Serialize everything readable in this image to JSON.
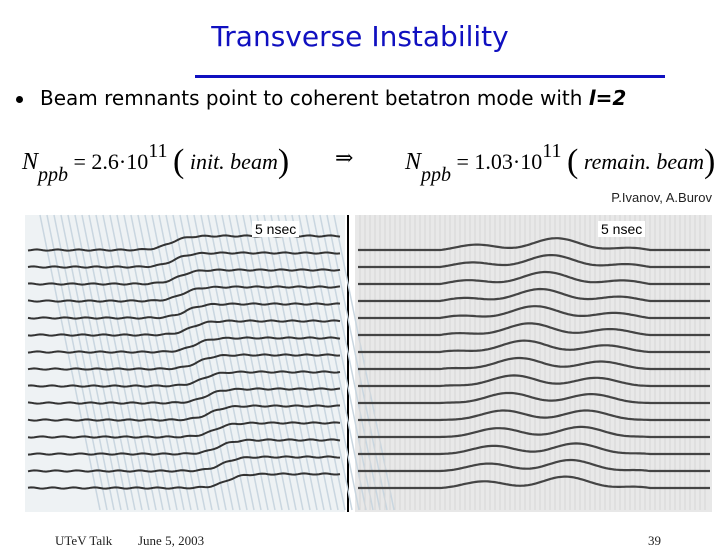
{
  "title": "Transverse Instability",
  "bullet": {
    "text": "Beam remnants point to coherent betatron mode with ",
    "emph": "l=2"
  },
  "formula_left": {
    "symbol": "N",
    "subscript": "ppb",
    "equals": "= 2.6·10",
    "exponent": "11",
    "open": "(",
    "label": "init. beam",
    "close": ")"
  },
  "arrow": "⇒",
  "formula_right": {
    "symbol": "N",
    "subscript": "ppb",
    "equals": "= 1.03·10",
    "exponent": "11",
    "open": "(",
    "label": "remain. beam",
    "close": ")"
  },
  "credit": "P.Ivanov, A.Burov",
  "left_image_label": "5 nsec",
  "right_image_label": "5 nsec",
  "footer": {
    "talk": "UTeV Talk",
    "date": "June 5, 2003",
    "page": "39"
  }
}
